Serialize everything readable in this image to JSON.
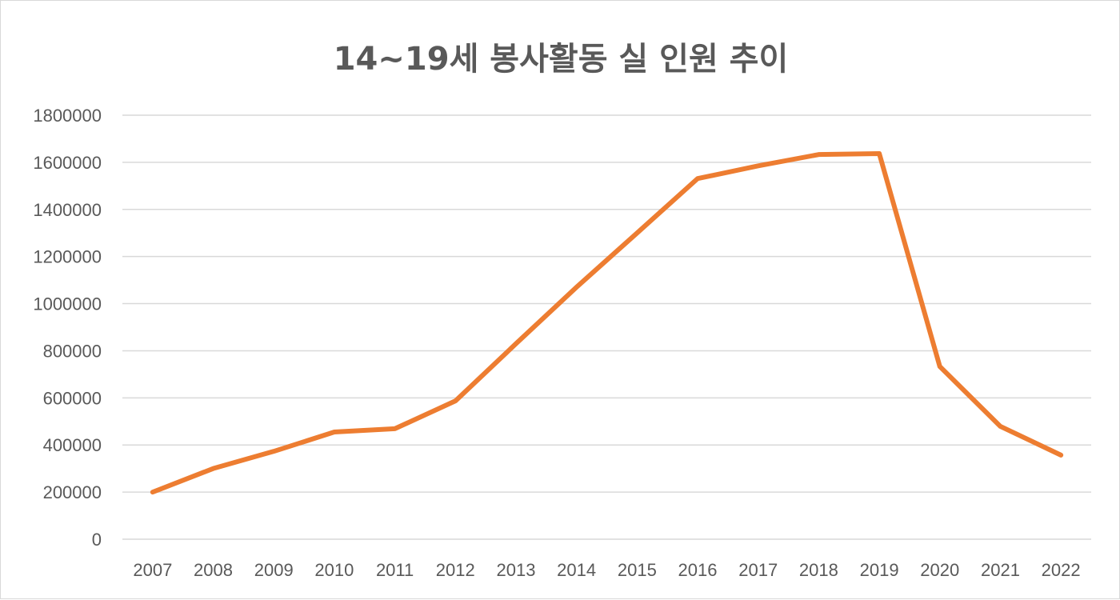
{
  "chart_data": {
    "type": "line",
    "title": "14~19세 봉사활동 실 인원 추이",
    "xlabel": "",
    "ylabel": "",
    "categories": [
      "2007",
      "2008",
      "2009",
      "2010",
      "2011",
      "2012",
      "2013",
      "2014",
      "2015",
      "2016",
      "2017",
      "2018",
      "2019",
      "2020",
      "2021",
      "2022"
    ],
    "series": [
      {
        "values": [
          200000,
          300000,
          373000,
          455000,
          469000,
          587000,
          830000,
          1070000,
          1300000,
          1531000,
          1585000,
          1633000,
          1637000,
          733000,
          479000,
          357000
        ],
        "color": "#ED7D31"
      }
    ],
    "ylim": [
      0,
      1800000
    ],
    "yticks": [
      "0",
      "200000",
      "400000",
      "600000",
      "800000",
      "1000000",
      "1200000",
      "1400000",
      "1600000",
      "1800000"
    ],
    "grid": true,
    "legend": "none",
    "gridColor": "#d9d9d9"
  }
}
